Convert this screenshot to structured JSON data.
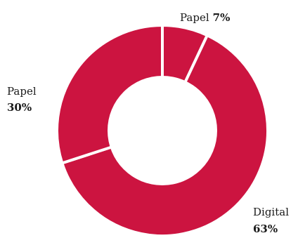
{
  "chart_data": {
    "type": "pie",
    "donut": true,
    "title": "",
    "slices": [
      {
        "label": "Papel",
        "value": 7,
        "value_label": "7%"
      },
      {
        "label": "Digital",
        "value": 63,
        "value_label": "63%"
      },
      {
        "label": "Papel",
        "value": 30,
        "value_label": "30%"
      }
    ],
    "start": "top",
    "direction": "clockwise",
    "colors": {
      "slice": "#cc1440",
      "separator": "#ffffff",
      "background": "#ffffff",
      "text": "#1a1a1a"
    },
    "legend": "none"
  }
}
